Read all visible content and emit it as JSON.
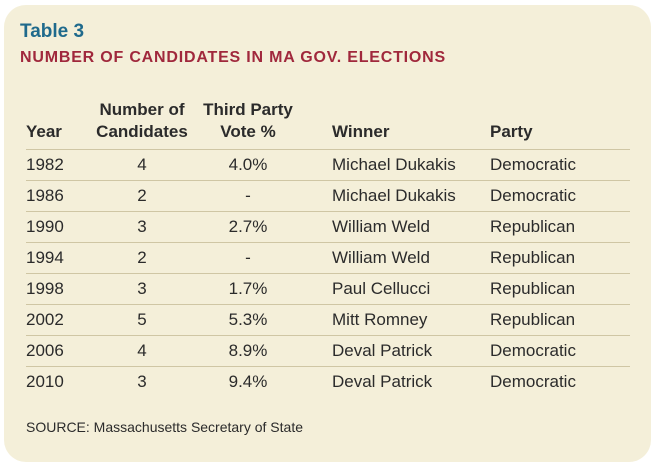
{
  "table_label": "Table 3",
  "table_title": "NUMBER OF CANDIDATES IN MA GOV. ELECTIONS",
  "headers": {
    "year": "Year",
    "candidates_line1": "Number of",
    "candidates_line2": "Candidates",
    "third_party_line1": "Third Party",
    "third_party_line2": "Vote %",
    "winner": "Winner",
    "party": "Party"
  },
  "rows": [
    {
      "year": "1982",
      "candidates": "4",
      "third_party": "4.0%",
      "winner": "Michael Dukakis",
      "party": "Democratic"
    },
    {
      "year": "1986",
      "candidates": "2",
      "third_party": "-",
      "winner": "Michael Dukakis",
      "party": "Democratic"
    },
    {
      "year": "1990",
      "candidates": "3",
      "third_party": "2.7%",
      "winner": "William Weld",
      "party": "Republican"
    },
    {
      "year": "1994",
      "candidates": "2",
      "third_party": "-",
      "winner": "William Weld",
      "party": "Republican"
    },
    {
      "year": "1998",
      "candidates": "3",
      "third_party": "1.7%",
      "winner": "Paul Cellucci",
      "party": "Republican"
    },
    {
      "year": "2002",
      "candidates": "5",
      "third_party": "5.3%",
      "winner": "Mitt Romney",
      "party": "Republican"
    },
    {
      "year": "2006",
      "candidates": "4",
      "third_party": "8.9%",
      "winner": "Deval Patrick",
      "party": "Democratic"
    },
    {
      "year": "2010",
      "candidates": "3",
      "third_party": "9.4%",
      "winner": "Deval Patrick",
      "party": "Democratic"
    }
  ],
  "source": "SOURCE: Massachusetts Secretary of State",
  "colors": {
    "background": "#f4efd9",
    "label": "#1f6a8c",
    "title": "#a0283c",
    "rule": "#cfc6a4"
  }
}
